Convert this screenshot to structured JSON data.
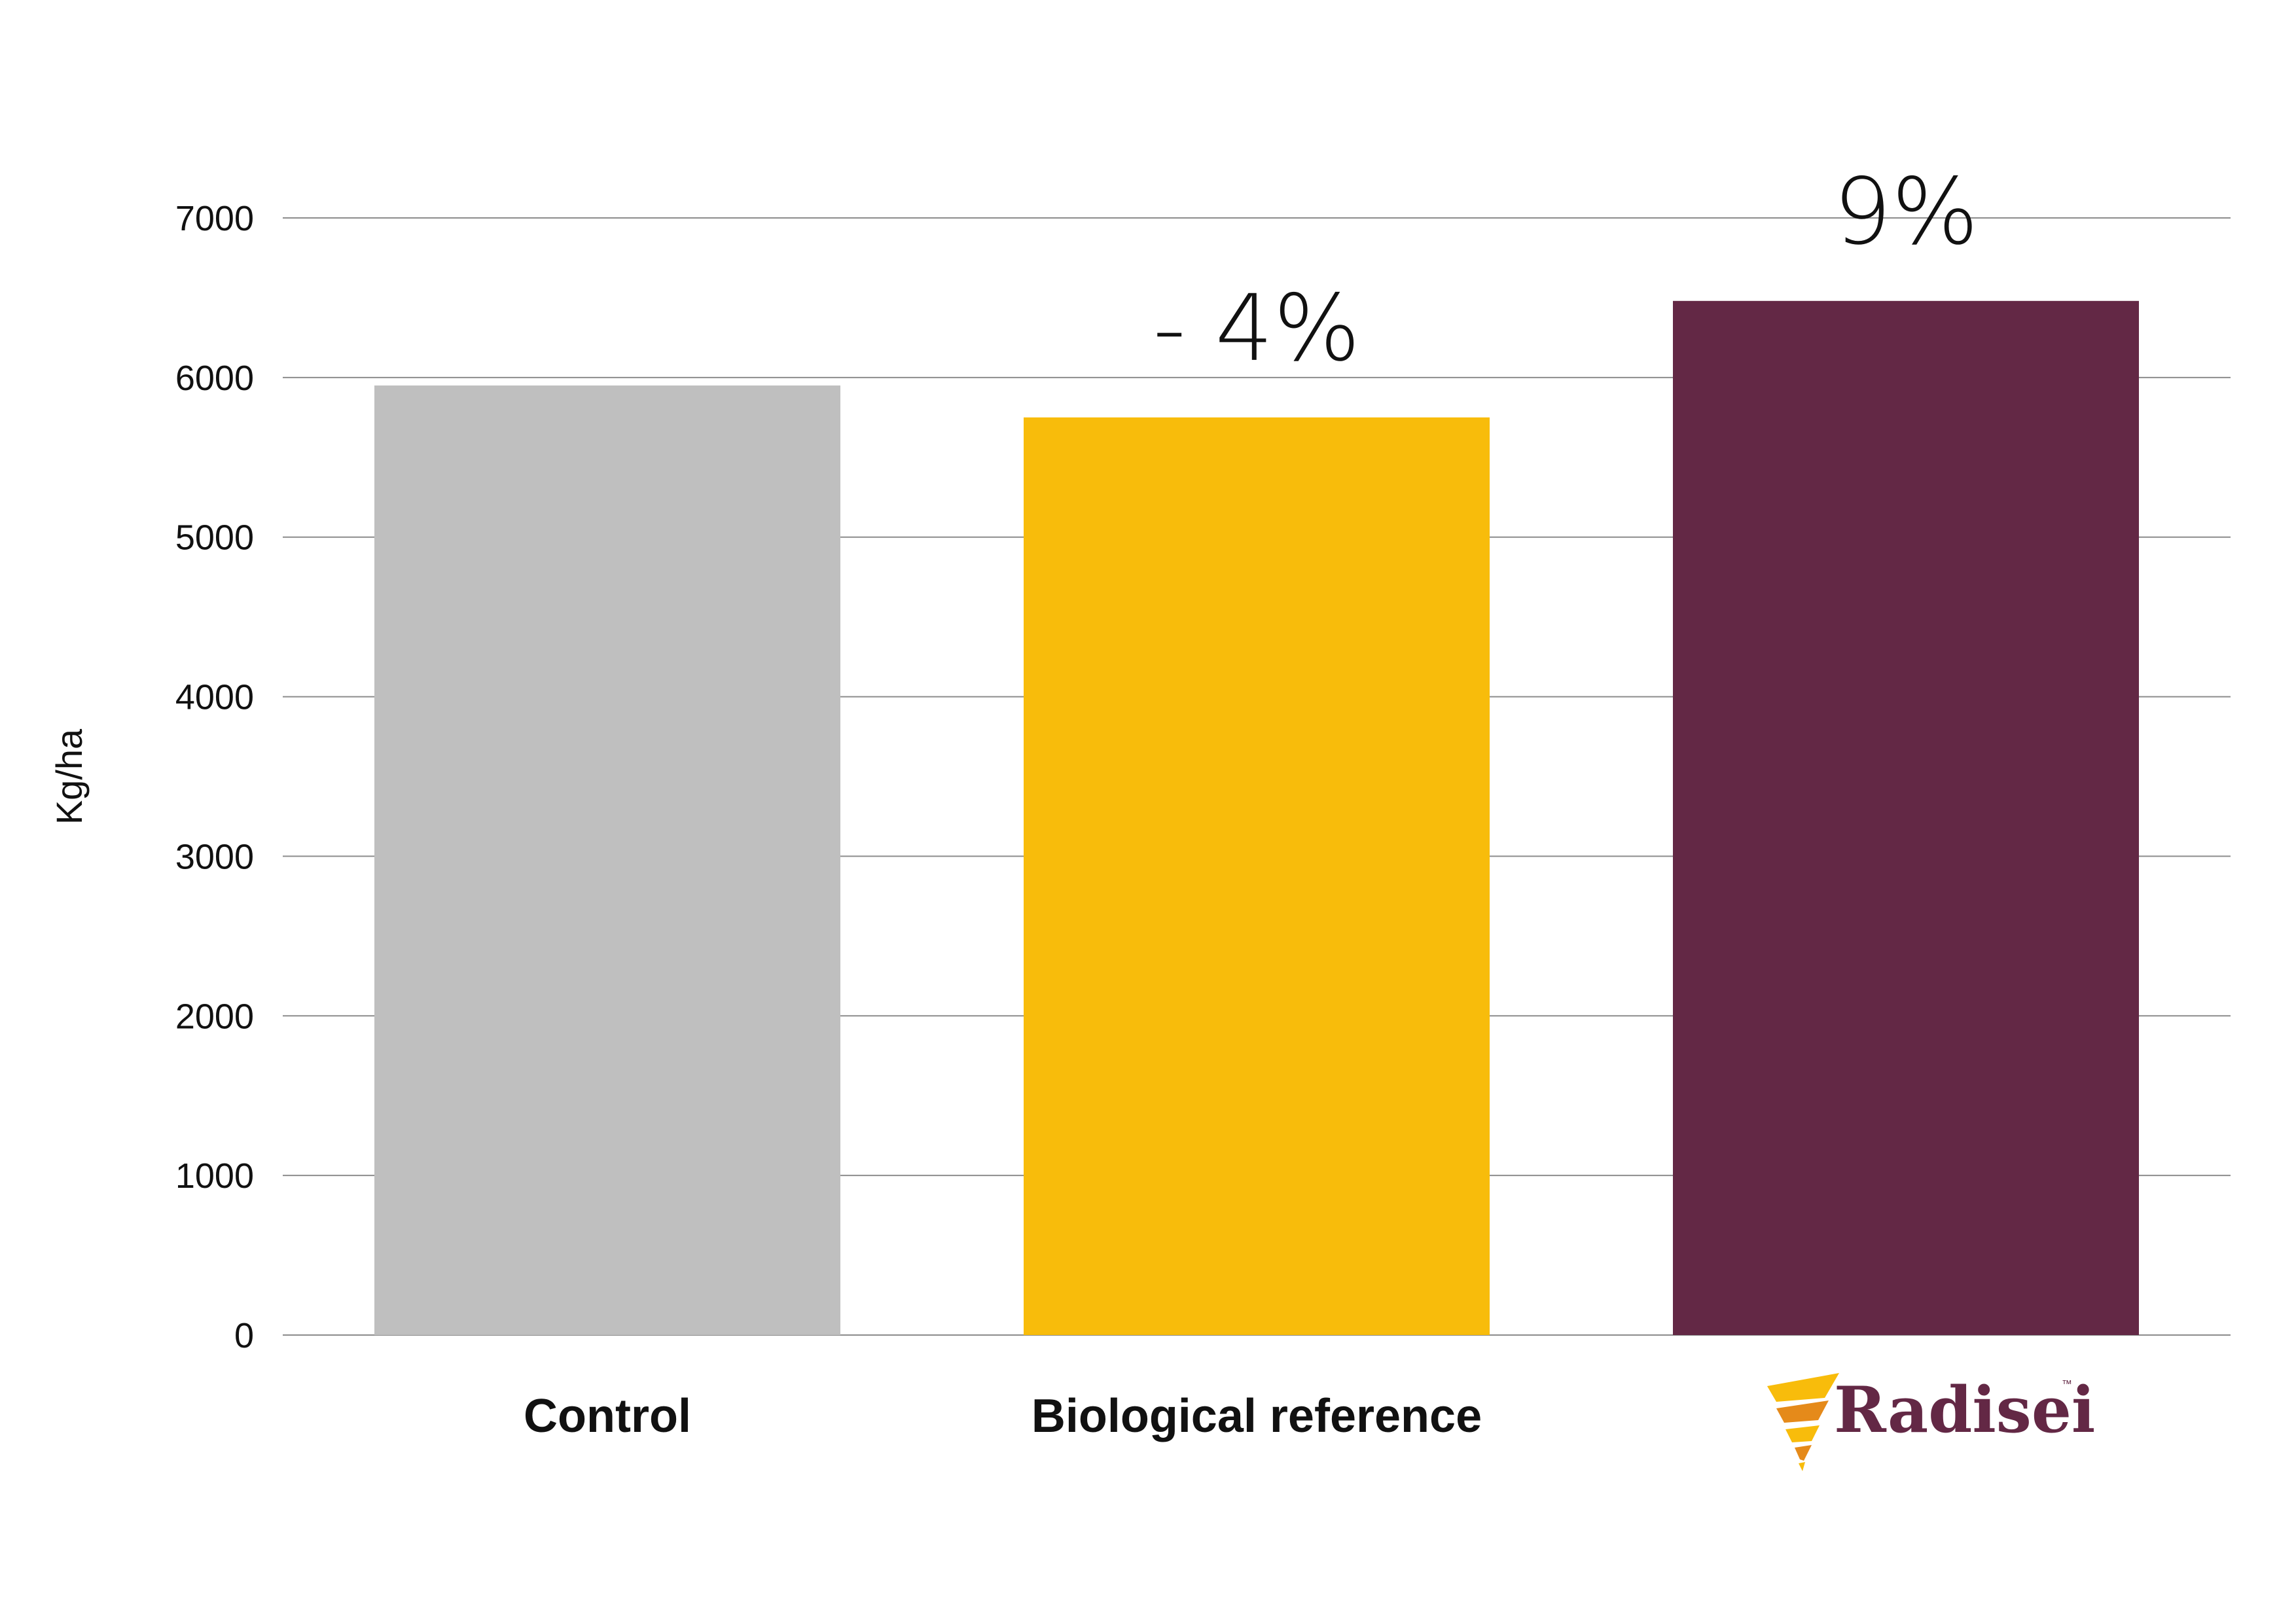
{
  "chart_data": {
    "type": "bar",
    "categories": [
      "Control",
      "Biological reference",
      "Radisei"
    ],
    "values": [
      5950,
      5750,
      6480
    ],
    "data_labels": [
      "",
      "- 4%",
      "9%"
    ],
    "colors": [
      "#BFBFBF",
      "#F8BC0B",
      "#632845"
    ],
    "title": "",
    "xlabel": "",
    "ylabel": "Kg/ha",
    "ylim": [
      0,
      7000
    ],
    "yticks": [
      0,
      1000,
      2000,
      3000,
      4000,
      5000,
      6000,
      7000
    ],
    "grid": true,
    "legend": "none"
  },
  "logo": {
    "text": "Radisei",
    "trademark": "™",
    "icon": "radisei-spiral-logo-icon",
    "brand_color": "#632845",
    "accent_color": "#F8BC0B"
  },
  "gridline_color": "#8C8C8C"
}
